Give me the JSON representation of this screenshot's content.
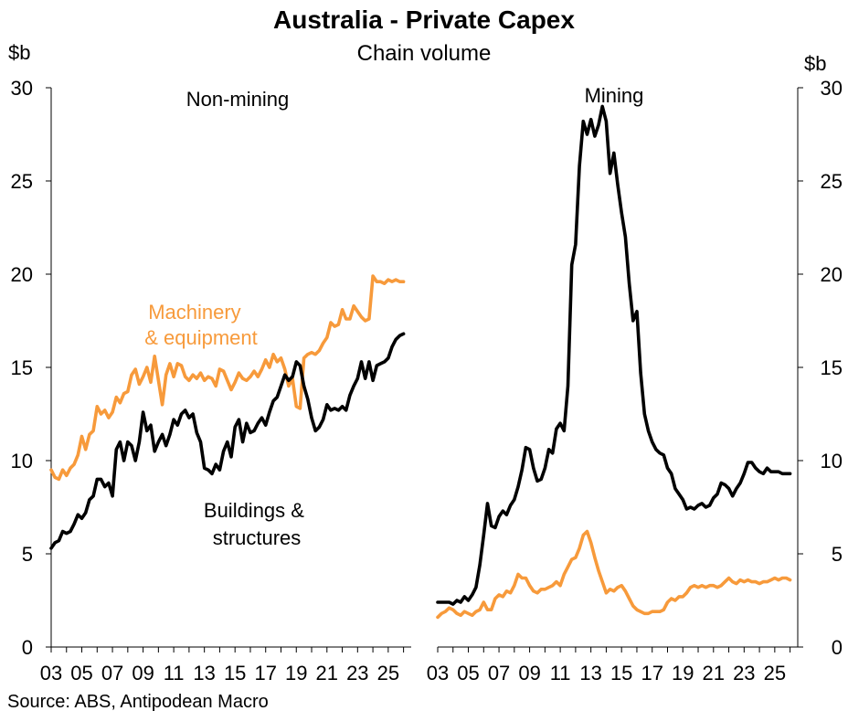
{
  "title": "Australia - Private Capex",
  "subtitle": "Chain volume",
  "source": "Source: ABS, Antipodean Macro",
  "colors": {
    "buildings": "#000000",
    "machinery": "#f79a3b",
    "axis": "#000000"
  },
  "chart_data": [
    {
      "type": "line",
      "panel": "Non-mining",
      "ylabel": "$b",
      "ylim": [
        0,
        30
      ],
      "yticks": [
        0,
        5,
        10,
        15,
        20,
        25,
        30
      ],
      "xlim": [
        2003.0,
        2026.5
      ],
      "xticks": [
        2003,
        2005,
        2007,
        2009,
        2011,
        2013,
        2015,
        2017,
        2019,
        2021,
        2023,
        2025
      ],
      "xticklabels": [
        "03",
        "05",
        "07",
        "09",
        "11",
        "13",
        "15",
        "17",
        "19",
        "21",
        "23",
        "25"
      ],
      "annotations": [
        {
          "text": [
            "Machinery",
            "& equipment"
          ],
          "series": "Machinery & equipment"
        },
        {
          "text": [
            "Buildings &",
            "structures"
          ],
          "series": "Buildings & structures"
        }
      ],
      "series": [
        {
          "name": "Machinery & equipment",
          "color": "#f79a3b",
          "x": [
            2003.0,
            2003.25,
            2003.5,
            2003.75,
            2004.0,
            2004.25,
            2004.5,
            2004.75,
            2005.0,
            2005.25,
            2005.5,
            2005.75,
            2006.0,
            2006.25,
            2006.5,
            2006.75,
            2007.0,
            2007.25,
            2007.5,
            2007.75,
            2008.0,
            2008.25,
            2008.5,
            2008.75,
            2009.0,
            2009.25,
            2009.5,
            2009.75,
            2010.0,
            2010.25,
            2010.5,
            2010.75,
            2011.0,
            2011.25,
            2011.5,
            2011.75,
            2012.0,
            2012.25,
            2012.5,
            2012.75,
            2013.0,
            2013.25,
            2013.5,
            2013.75,
            2014.0,
            2014.25,
            2014.5,
            2014.75,
            2015.0,
            2015.25,
            2015.5,
            2015.75,
            2016.0,
            2016.25,
            2016.5,
            2016.75,
            2017.0,
            2017.25,
            2017.5,
            2017.75,
            2018.0,
            2018.25,
            2018.5,
            2018.75,
            2019.0,
            2019.25,
            2019.5,
            2019.75,
            2020.0,
            2020.25,
            2020.5,
            2020.75,
            2021.0,
            2021.25,
            2021.5,
            2021.75,
            2022.0,
            2022.25,
            2022.5,
            2022.75,
            2023.0,
            2023.25,
            2023.5,
            2023.75,
            2024.0,
            2024.25,
            2024.5,
            2024.75,
            2025.0,
            2025.25,
            2025.5,
            2025.75,
            2026.0
          ],
          "values": [
            9.5,
            9.1,
            9.0,
            9.5,
            9.2,
            9.6,
            9.8,
            10.3,
            11.3,
            10.6,
            11.4,
            11.6,
            12.9,
            12.5,
            12.7,
            12.3,
            12.6,
            13.4,
            13.1,
            13.6,
            13.7,
            14.6,
            14.9,
            14.1,
            14.5,
            15.0,
            14.2,
            15.6,
            14.3,
            13.0,
            14.6,
            15.2,
            14.5,
            15.2,
            15.1,
            14.5,
            14.3,
            14.6,
            14.4,
            14.7,
            14.3,
            14.5,
            14.4,
            14.0,
            14.9,
            14.8,
            14.3,
            13.8,
            14.2,
            14.7,
            14.4,
            14.3,
            14.5,
            14.8,
            14.5,
            14.9,
            15.4,
            15.0,
            15.7,
            15.3,
            15.5,
            14.9,
            14.0,
            14.4,
            12.9,
            12.8,
            15.5,
            15.7,
            15.8,
            15.7,
            15.9,
            16.3,
            16.6,
            17.4,
            17.2,
            17.3,
            18.1,
            17.6,
            17.6,
            18.3,
            18.0,
            17.7,
            17.5,
            17.6,
            19.9,
            19.6,
            19.6,
            19.5,
            19.7,
            19.6,
            19.7,
            19.6,
            19.6
          ]
        },
        {
          "name": "Buildings & structures",
          "color": "#000000",
          "x": [
            2003.0,
            2003.25,
            2003.5,
            2003.75,
            2004.0,
            2004.25,
            2004.5,
            2004.75,
            2005.0,
            2005.25,
            2005.5,
            2005.75,
            2006.0,
            2006.25,
            2006.5,
            2006.75,
            2007.0,
            2007.25,
            2007.5,
            2007.75,
            2008.0,
            2008.25,
            2008.5,
            2008.75,
            2009.0,
            2009.25,
            2009.5,
            2009.75,
            2010.0,
            2010.25,
            2010.5,
            2010.75,
            2011.0,
            2011.25,
            2011.5,
            2011.75,
            2012.0,
            2012.25,
            2012.5,
            2012.75,
            2013.0,
            2013.25,
            2013.5,
            2013.75,
            2014.0,
            2014.25,
            2014.5,
            2014.75,
            2015.0,
            2015.25,
            2015.5,
            2015.75,
            2016.0,
            2016.25,
            2016.5,
            2016.75,
            2017.0,
            2017.25,
            2017.5,
            2017.75,
            2018.0,
            2018.25,
            2018.5,
            2018.75,
            2019.0,
            2019.25,
            2019.5,
            2019.75,
            2020.0,
            2020.25,
            2020.5,
            2020.75,
            2021.0,
            2021.25,
            2021.5,
            2021.75,
            2022.0,
            2022.25,
            2022.5,
            2022.75,
            2023.0,
            2023.25,
            2023.5,
            2023.75,
            2024.0,
            2024.25,
            2024.5,
            2024.75,
            2025.0,
            2025.25,
            2025.5,
            2025.75,
            2026.0
          ],
          "values": [
            5.3,
            5.6,
            5.7,
            6.2,
            6.1,
            6.2,
            6.6,
            7.1,
            6.9,
            7.2,
            7.9,
            8.1,
            9.0,
            9.0,
            8.6,
            8.8,
            8.1,
            10.6,
            11.0,
            10.0,
            11.0,
            10.8,
            10.0,
            11.0,
            12.6,
            11.6,
            11.9,
            10.5,
            11.0,
            11.4,
            10.8,
            11.4,
            12.2,
            11.9,
            12.5,
            12.7,
            12.3,
            12.5,
            11.5,
            11.0,
            9.6,
            9.5,
            9.3,
            9.8,
            9.5,
            10.5,
            11.0,
            10.2,
            11.8,
            12.2,
            11.0,
            12.0,
            11.5,
            11.6,
            12.0,
            12.3,
            11.9,
            12.6,
            13.2,
            13.4,
            14.0,
            14.6,
            14.3,
            14.5,
            15.3,
            15.1,
            14.0,
            13.3,
            12.3,
            11.6,
            11.8,
            12.2,
            13.0,
            12.7,
            12.8,
            12.7,
            12.9,
            12.7,
            13.5,
            14.0,
            14.4,
            15.3,
            14.4,
            15.3,
            14.3,
            15.1,
            15.2,
            15.3,
            15.5,
            16.1,
            16.5,
            16.7,
            16.8
          ]
        }
      ]
    },
    {
      "type": "line",
      "panel": "Mining",
      "ylabel": "$b",
      "ylim": [
        0,
        30
      ],
      "yticks": [
        0,
        5,
        10,
        15,
        20,
        25,
        30
      ],
      "xlim": [
        2003.0,
        2026.5
      ],
      "xticks": [
        2003,
        2005,
        2007,
        2009,
        2011,
        2013,
        2015,
        2017,
        2019,
        2021,
        2023,
        2025
      ],
      "xticklabels": [
        "03",
        "05",
        "07",
        "09",
        "11",
        "13",
        "15",
        "17",
        "19",
        "21",
        "23",
        "25"
      ],
      "series": [
        {
          "name": "Buildings & structures",
          "color": "#000000",
          "x": [
            2003.0,
            2003.25,
            2003.5,
            2003.75,
            2004.0,
            2004.25,
            2004.5,
            2004.75,
            2005.0,
            2005.25,
            2005.5,
            2005.75,
            2006.0,
            2006.25,
            2006.5,
            2006.75,
            2007.0,
            2007.25,
            2007.5,
            2007.75,
            2008.0,
            2008.25,
            2008.5,
            2008.75,
            2009.0,
            2009.25,
            2009.5,
            2009.75,
            2010.0,
            2010.25,
            2010.5,
            2010.75,
            2011.0,
            2011.25,
            2011.5,
            2011.75,
            2012.0,
            2012.25,
            2012.5,
            2012.75,
            2013.0,
            2013.25,
            2013.5,
            2013.75,
            2014.0,
            2014.25,
            2014.5,
            2014.75,
            2015.0,
            2015.25,
            2015.5,
            2015.75,
            2016.0,
            2016.25,
            2016.5,
            2016.75,
            2017.0,
            2017.25,
            2017.5,
            2017.75,
            2018.0,
            2018.25,
            2018.5,
            2018.75,
            2019.0,
            2019.25,
            2019.5,
            2019.75,
            2020.0,
            2020.25,
            2020.5,
            2020.75,
            2021.0,
            2021.25,
            2021.5,
            2021.75,
            2022.0,
            2022.25,
            2022.5,
            2022.75,
            2023.0,
            2023.25,
            2023.5,
            2023.75,
            2024.0,
            2024.25,
            2024.5,
            2024.75,
            2025.0,
            2025.25,
            2025.5,
            2025.75,
            2026.0
          ],
          "values": [
            2.4,
            2.4,
            2.4,
            2.4,
            2.3,
            2.5,
            2.4,
            2.7,
            2.5,
            2.8,
            3.2,
            4.4,
            6.0,
            7.7,
            6.5,
            6.4,
            7.0,
            7.3,
            7.1,
            7.6,
            7.9,
            8.6,
            9.5,
            10.7,
            10.6,
            9.6,
            8.9,
            9.0,
            9.6,
            10.6,
            10.4,
            11.7,
            12.0,
            11.6,
            14.0,
            20.5,
            21.6,
            25.8,
            28.2,
            27.5,
            28.3,
            27.4,
            28.0,
            29.0,
            28.2,
            25.4,
            26.5,
            24.8,
            23.3,
            22.0,
            19.5,
            17.5,
            18.0,
            14.7,
            12.5,
            11.6,
            11.0,
            10.6,
            10.4,
            10.3,
            9.6,
            9.3,
            8.5,
            8.2,
            7.9,
            7.4,
            7.5,
            7.4,
            7.6,
            7.7,
            7.5,
            7.6,
            8.0,
            8.2,
            8.8,
            8.7,
            8.5,
            8.1,
            8.5,
            8.8,
            9.3,
            9.9,
            9.9,
            9.6,
            9.4,
            9.3,
            9.6,
            9.4,
            9.4,
            9.4,
            9.3,
            9.3,
            9.3
          ]
        },
        {
          "name": "Machinery & equipment",
          "color": "#f79a3b",
          "x": [
            2003.0,
            2003.25,
            2003.5,
            2003.75,
            2004.0,
            2004.25,
            2004.5,
            2004.75,
            2005.0,
            2005.25,
            2005.5,
            2005.75,
            2006.0,
            2006.25,
            2006.5,
            2006.75,
            2007.0,
            2007.25,
            2007.5,
            2007.75,
            2008.0,
            2008.25,
            2008.5,
            2008.75,
            2009.0,
            2009.25,
            2009.5,
            2009.75,
            2010.0,
            2010.25,
            2010.5,
            2010.75,
            2011.0,
            2011.25,
            2011.5,
            2011.75,
            2012.0,
            2012.25,
            2012.5,
            2012.75,
            2013.0,
            2013.25,
            2013.5,
            2013.75,
            2014.0,
            2014.25,
            2014.5,
            2014.75,
            2015.0,
            2015.25,
            2015.5,
            2015.75,
            2016.0,
            2016.25,
            2016.5,
            2016.75,
            2017.0,
            2017.25,
            2017.5,
            2017.75,
            2018.0,
            2018.25,
            2018.5,
            2018.75,
            2019.0,
            2019.25,
            2019.5,
            2019.75,
            2020.0,
            2020.25,
            2020.5,
            2020.75,
            2021.0,
            2021.25,
            2021.5,
            2021.75,
            2022.0,
            2022.25,
            2022.5,
            2022.75,
            2023.0,
            2023.25,
            2023.5,
            2023.75,
            2024.0,
            2024.25,
            2024.5,
            2024.75,
            2025.0,
            2025.25,
            2025.5,
            2025.75,
            2026.0
          ],
          "values": [
            1.6,
            1.8,
            1.9,
            2.1,
            2.0,
            1.8,
            1.7,
            1.9,
            1.8,
            1.7,
            1.9,
            2.0,
            2.4,
            2.0,
            2.0,
            2.6,
            2.8,
            2.7,
            3.0,
            2.9,
            3.3,
            3.9,
            3.7,
            3.7,
            3.3,
            3.0,
            2.9,
            3.1,
            3.1,
            3.2,
            3.3,
            3.5,
            3.3,
            3.9,
            4.3,
            4.7,
            4.8,
            5.3,
            6.0,
            6.2,
            5.6,
            4.8,
            4.1,
            3.5,
            2.9,
            3.1,
            3.0,
            3.2,
            3.3,
            3.0,
            2.6,
            2.2,
            2.0,
            1.9,
            1.8,
            1.8,
            1.9,
            1.9,
            1.9,
            2.0,
            2.4,
            2.6,
            2.5,
            2.7,
            2.7,
            2.9,
            3.2,
            3.3,
            3.2,
            3.3,
            3.2,
            3.3,
            3.3,
            3.2,
            3.3,
            3.5,
            3.7,
            3.5,
            3.4,
            3.6,
            3.5,
            3.6,
            3.5,
            3.5,
            3.4,
            3.5,
            3.5,
            3.6,
            3.7,
            3.6,
            3.7,
            3.7,
            3.6
          ]
        }
      ]
    }
  ]
}
